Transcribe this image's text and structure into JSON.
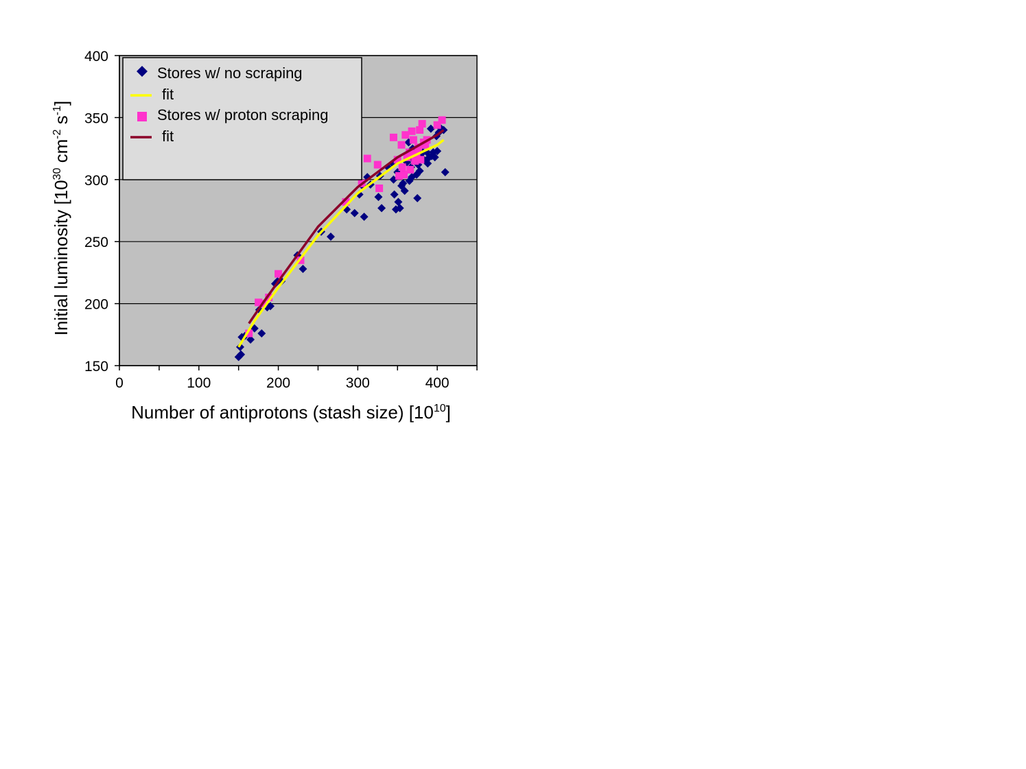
{
  "chart_data": {
    "type": "scatter",
    "xlabel": "Number of antiprotons (stash size) [10",
    "xlabel_sup": "10",
    "xlabel_end": "]",
    "ylabel_parts": [
      "Initial luminosity [10",
      "30",
      " cm",
      "-2",
      " s",
      "-1",
      "]"
    ],
    "xlim": [
      0,
      450
    ],
    "ylim": [
      150,
      400
    ],
    "x_ticks": [
      "0",
      "100",
      "200",
      "300",
      "400"
    ],
    "y_ticks": [
      "150",
      "200",
      "250",
      "300",
      "350",
      "400"
    ],
    "grid": "horizontal",
    "legend_placement": "top-left",
    "colors": {
      "plot_bg": "#c0c0c0",
      "no_scraping": "#000080",
      "no_scraping_fit": "#ffff00",
      "scraping": "#ff33cc",
      "scraping_fit": "#8b0029"
    },
    "series": [
      {
        "name": "Stores w/ no scraping",
        "marker": "diamond",
        "points": [
          [
            150,
            157
          ],
          [
            152,
            165
          ],
          [
            153,
            159
          ],
          [
            154,
            173
          ],
          [
            158,
            174
          ],
          [
            165,
            171
          ],
          [
            170,
            180
          ],
          [
            176,
            195
          ],
          [
            179,
            176
          ],
          [
            186,
            197
          ],
          [
            190,
            198
          ],
          [
            196,
            216
          ],
          [
            199,
            218
          ],
          [
            204,
            218
          ],
          [
            224,
            239
          ],
          [
            231,
            228
          ],
          [
            254,
            258
          ],
          [
            266,
            254
          ],
          [
            286,
            276
          ],
          [
            296,
            273
          ],
          [
            302,
            288
          ],
          [
            306,
            295
          ],
          [
            308,
            270
          ],
          [
            312,
            302
          ],
          [
            316,
            296
          ],
          [
            326,
            286
          ],
          [
            328,
            303
          ],
          [
            330,
            277
          ],
          [
            338,
            310
          ],
          [
            344,
            313
          ],
          [
            345,
            300
          ],
          [
            346,
            288
          ],
          [
            348,
            276
          ],
          [
            350,
            306
          ],
          [
            351,
            282
          ],
          [
            353,
            277
          ],
          [
            355,
            295
          ],
          [
            357,
            297
          ],
          [
            358,
            305
          ],
          [
            359,
            291
          ],
          [
            362,
            314
          ],
          [
            364,
            330
          ],
          [
            365,
            299
          ],
          [
            367,
            310
          ],
          [
            368,
            302
          ],
          [
            369,
            325
          ],
          [
            370,
            316
          ],
          [
            372,
            320
          ],
          [
            374,
            304
          ],
          [
            375,
            285
          ],
          [
            376,
            312
          ],
          [
            378,
            307
          ],
          [
            380,
            318
          ],
          [
            382,
            322
          ],
          [
            384,
            328
          ],
          [
            385,
            315
          ],
          [
            387,
            322
          ],
          [
            388,
            313
          ],
          [
            390,
            318
          ],
          [
            392,
            341
          ],
          [
            393,
            319
          ],
          [
            395,
            322
          ],
          [
            397,
            318
          ],
          [
            399,
            335
          ],
          [
            400,
            323
          ],
          [
            402,
            338
          ],
          [
            405,
            341
          ],
          [
            408,
            340
          ],
          [
            410,
            306
          ]
        ]
      },
      {
        "name": "fit",
        "line": true,
        "points": [
          [
            150,
            165
          ],
          [
            170,
            186
          ],
          [
            200,
            213
          ],
          [
            250,
            255
          ],
          [
            300,
            289
          ],
          [
            350,
            313
          ],
          [
            400,
            328
          ],
          [
            408,
            332
          ]
        ]
      },
      {
        "name": "Stores w/ proton scraping",
        "marker": "square",
        "points": [
          [
            163,
            176
          ],
          [
            175,
            201
          ],
          [
            180,
            200
          ],
          [
            188,
            205
          ],
          [
            200,
            224
          ],
          [
            228,
            235
          ],
          [
            285,
            282
          ],
          [
            305,
            297
          ],
          [
            312,
            317
          ],
          [
            325,
            312
          ],
          [
            327,
            293
          ],
          [
            345,
            334
          ],
          [
            350,
            316
          ],
          [
            352,
            303
          ],
          [
            355,
            328
          ],
          [
            356,
            310
          ],
          [
            358,
            304
          ],
          [
            360,
            336
          ],
          [
            362,
            318
          ],
          [
            365,
            322
          ],
          [
            366,
            308
          ],
          [
            368,
            339
          ],
          [
            370,
            332
          ],
          [
            372,
            315
          ],
          [
            374,
            321
          ],
          [
            376,
            326
          ],
          [
            378,
            340
          ],
          [
            379,
            316
          ],
          [
            381,
            345
          ],
          [
            383,
            330
          ],
          [
            385,
            328
          ],
          [
            387,
            332
          ],
          [
            400,
            344
          ],
          [
            406,
            348
          ]
        ]
      },
      {
        "name": "fit",
        "line": true,
        "points": [
          [
            163,
            184
          ],
          [
            180,
            200
          ],
          [
            200,
            218
          ],
          [
            250,
            262
          ],
          [
            300,
            294
          ],
          [
            350,
            318
          ],
          [
            400,
            336
          ],
          [
            408,
            340
          ]
        ]
      }
    ]
  }
}
